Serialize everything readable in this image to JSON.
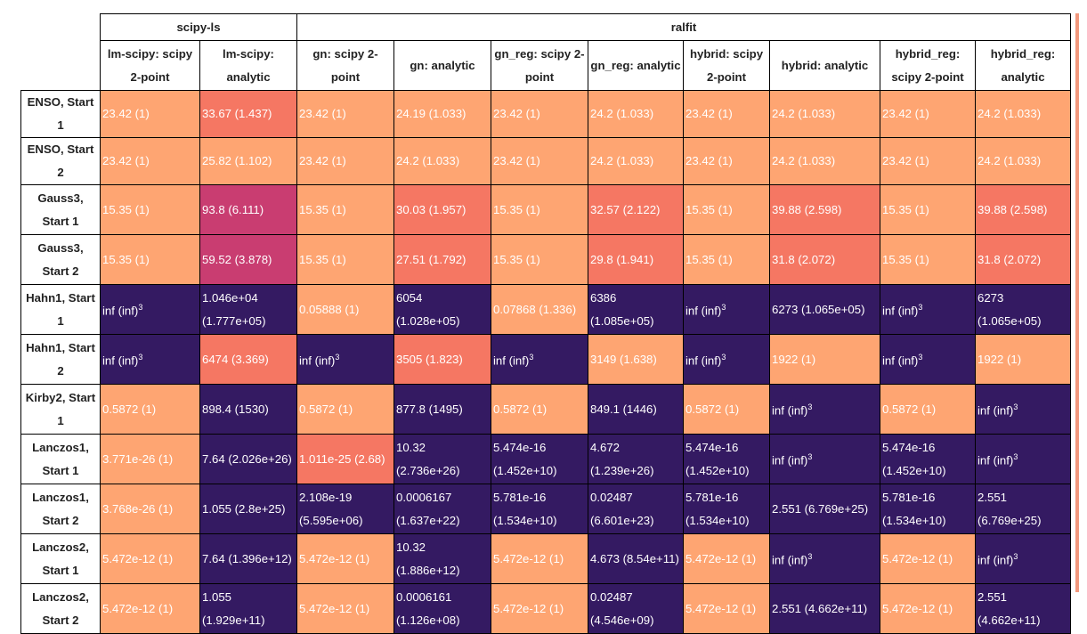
{
  "colors": {
    "low": "#fea572",
    "mid": "#f57763",
    "high": "#c93d71",
    "bad": "#341a62"
  },
  "groups": [
    {
      "label": "scipy-ls",
      "span": 2
    },
    {
      "label": "ralfit",
      "span": 8
    }
  ],
  "columns": [
    "lm-scipy: scipy 2-point",
    "lm-scipy: analytic",
    "gn: scipy 2-point",
    "gn: analytic",
    "gn_reg: scipy 2-point",
    "gn_reg: analytic",
    "hybrid: scipy 2-point",
    "hybrid: analytic",
    "hybrid_reg: scipy 2-point",
    "hybrid_reg: analytic"
  ],
  "rows": [
    {
      "name": "ENSO, Start 1",
      "cells": [
        {
          "text": "23.42 (1)",
          "c": "low"
        },
        {
          "text": "33.67 (1.437)",
          "c": "mid"
        },
        {
          "text": "23.42 (1)",
          "c": "low"
        },
        {
          "text": "24.19 (1.033)",
          "c": "low"
        },
        {
          "text": "23.42 (1)",
          "c": "low"
        },
        {
          "text": "24.2 (1.033)",
          "c": "low"
        },
        {
          "text": "23.42 (1)",
          "c": "low"
        },
        {
          "text": "24.2 (1.033)",
          "c": "low"
        },
        {
          "text": "23.42 (1)",
          "c": "low"
        },
        {
          "text": "24.2 (1.033)",
          "c": "low"
        }
      ]
    },
    {
      "name": "ENSO, Start 2",
      "cells": [
        {
          "text": "23.42 (1)",
          "c": "low"
        },
        {
          "text": "25.82 (1.102)",
          "c": "low"
        },
        {
          "text": "23.42 (1)",
          "c": "low"
        },
        {
          "text": "24.2 (1.033)",
          "c": "low"
        },
        {
          "text": "23.42 (1)",
          "c": "low"
        },
        {
          "text": "24.2 (1.033)",
          "c": "low"
        },
        {
          "text": "23.42 (1)",
          "c": "low"
        },
        {
          "text": "24.2 (1.033)",
          "c": "low"
        },
        {
          "text": "23.42 (1)",
          "c": "low"
        },
        {
          "text": "24.2 (1.033)",
          "c": "low"
        }
      ]
    },
    {
      "name": "Gauss3, Start 1",
      "cells": [
        {
          "text": "15.35 (1)",
          "c": "low"
        },
        {
          "text": "93.8 (6.111)",
          "c": "high"
        },
        {
          "text": "15.35 (1)",
          "c": "low"
        },
        {
          "text": "30.03 (1.957)",
          "c": "mid"
        },
        {
          "text": "15.35 (1)",
          "c": "low"
        },
        {
          "text": "32.57 (2.122)",
          "c": "mid"
        },
        {
          "text": "15.35 (1)",
          "c": "low"
        },
        {
          "text": "39.88 (2.598)",
          "c": "mid"
        },
        {
          "text": "15.35 (1)",
          "c": "low"
        },
        {
          "text": "39.88 (2.598)",
          "c": "mid"
        }
      ]
    },
    {
      "name": "Gauss3, Start 2",
      "cells": [
        {
          "text": "15.35 (1)",
          "c": "low"
        },
        {
          "text": "59.52 (3.878)",
          "c": "high"
        },
        {
          "text": "15.35 (1)",
          "c": "low"
        },
        {
          "text": "27.51 (1.792)",
          "c": "mid"
        },
        {
          "text": "15.35 (1)",
          "c": "low"
        },
        {
          "text": "29.8 (1.941)",
          "c": "mid"
        },
        {
          "text": "15.35 (1)",
          "c": "low"
        },
        {
          "text": "31.8 (2.072)",
          "c": "mid"
        },
        {
          "text": "15.35 (1)",
          "c": "low"
        },
        {
          "text": "31.8 (2.072)",
          "c": "mid"
        }
      ]
    },
    {
      "name": "Hahn1, Start 1",
      "cells": [
        {
          "text": "inf (inf)",
          "sup": "3",
          "c": "bad"
        },
        {
          "text": "1.046e+04 (1.777e+05)",
          "c": "bad"
        },
        {
          "text": "0.05888 (1)",
          "c": "low"
        },
        {
          "text": "6054 (1.028e+05)",
          "c": "bad"
        },
        {
          "text": "0.07868 (1.336)",
          "c": "low"
        },
        {
          "text": "6386 (1.085e+05)",
          "c": "bad"
        },
        {
          "text": "inf (inf)",
          "sup": "3",
          "c": "bad"
        },
        {
          "text": "6273 (1.065e+05)",
          "c": "bad"
        },
        {
          "text": "inf (inf)",
          "sup": "3",
          "c": "bad"
        },
        {
          "text": "6273 (1.065e+05)",
          "c": "bad"
        }
      ]
    },
    {
      "name": "Hahn1, Start 2",
      "cells": [
        {
          "text": "inf (inf)",
          "sup": "3",
          "c": "bad"
        },
        {
          "text": "6474 (3.369)",
          "c": "mid"
        },
        {
          "text": "inf (inf)",
          "sup": "3",
          "c": "bad"
        },
        {
          "text": "3505 (1.823)",
          "c": "mid"
        },
        {
          "text": "inf (inf)",
          "sup": "3",
          "c": "bad"
        },
        {
          "text": "3149 (1.638)",
          "c": "low"
        },
        {
          "text": "inf (inf)",
          "sup": "3",
          "c": "bad"
        },
        {
          "text": "1922 (1)",
          "c": "low"
        },
        {
          "text": "inf (inf)",
          "sup": "3",
          "c": "bad"
        },
        {
          "text": "1922 (1)",
          "c": "low"
        }
      ]
    },
    {
      "name": "Kirby2, Start 1",
      "cells": [
        {
          "text": "0.5872 (1)",
          "c": "low"
        },
        {
          "text": "898.4 (1530)",
          "c": "bad"
        },
        {
          "text": "0.5872 (1)",
          "c": "low"
        },
        {
          "text": "877.8 (1495)",
          "c": "bad"
        },
        {
          "text": "0.5872 (1)",
          "c": "low"
        },
        {
          "text": "849.1 (1446)",
          "c": "bad"
        },
        {
          "text": "0.5872 (1)",
          "c": "low"
        },
        {
          "text": "inf (inf)",
          "sup": "3",
          "c": "bad"
        },
        {
          "text": "0.5872 (1)",
          "c": "low"
        },
        {
          "text": "inf (inf)",
          "sup": "3",
          "c": "bad"
        }
      ]
    },
    {
      "name": "Lanczos1, Start 1",
      "cells": [
        {
          "text": "3.771e-26 (1)",
          "c": "low"
        },
        {
          "text": "7.64 (2.026e+26)",
          "c": "bad"
        },
        {
          "text": "1.011e-25 (2.68)",
          "c": "mid"
        },
        {
          "text": "10.32 (2.736e+26)",
          "c": "bad"
        },
        {
          "text": "5.474e-16 (1.452e+10)",
          "c": "bad"
        },
        {
          "text": "4.672 (1.239e+26)",
          "c": "bad"
        },
        {
          "text": "5.474e-16 (1.452e+10)",
          "c": "bad"
        },
        {
          "text": "inf (inf)",
          "sup": "3",
          "c": "bad"
        },
        {
          "text": "5.474e-16 (1.452e+10)",
          "c": "bad"
        },
        {
          "text": "inf (inf)",
          "sup": "3",
          "c": "bad"
        }
      ]
    },
    {
      "name": "Lanczos1, Start 2",
      "cells": [
        {
          "text": "3.768e-26 (1)",
          "c": "low"
        },
        {
          "text": "1.055 (2.8e+25)",
          "c": "bad"
        },
        {
          "text": "2.108e-19 (5.595e+06)",
          "c": "bad"
        },
        {
          "text": "0.0006167 (1.637e+22)",
          "c": "bad"
        },
        {
          "text": "5.781e-16 (1.534e+10)",
          "c": "bad"
        },
        {
          "text": "0.02487 (6.601e+23)",
          "c": "bad"
        },
        {
          "text": "5.781e-16 (1.534e+10)",
          "c": "bad"
        },
        {
          "text": "2.551 (6.769e+25)",
          "c": "bad"
        },
        {
          "text": "5.781e-16 (1.534e+10)",
          "c": "bad"
        },
        {
          "text": "2.551 (6.769e+25)",
          "c": "bad"
        }
      ]
    },
    {
      "name": "Lanczos2, Start 1",
      "cells": [
        {
          "text": "5.472e-12 (1)",
          "c": "low"
        },
        {
          "text": "7.64 (1.396e+12)",
          "c": "bad"
        },
        {
          "text": "5.472e-12 (1)",
          "c": "low"
        },
        {
          "text": "10.32 (1.886e+12)",
          "c": "bad"
        },
        {
          "text": "5.472e-12 (1)",
          "c": "low"
        },
        {
          "text": "4.673 (8.54e+11)",
          "c": "bad"
        },
        {
          "text": "5.472e-12 (1)",
          "c": "low"
        },
        {
          "text": "inf (inf)",
          "sup": "3",
          "c": "bad"
        },
        {
          "text": "5.472e-12 (1)",
          "c": "low"
        },
        {
          "text": "inf (inf)",
          "sup": "3",
          "c": "bad"
        }
      ]
    },
    {
      "name": "Lanczos2, Start 2",
      "cells": [
        {
          "text": "5.472e-12 (1)",
          "c": "low"
        },
        {
          "text": "1.055 (1.929e+11)",
          "c": "bad"
        },
        {
          "text": "5.472e-12 (1)",
          "c": "low"
        },
        {
          "text": "0.0006161 (1.126e+08)",
          "c": "bad"
        },
        {
          "text": "5.472e-12 (1)",
          "c": "low"
        },
        {
          "text": "0.02487 (4.546e+09)",
          "c": "bad"
        },
        {
          "text": "5.472e-12 (1)",
          "c": "low"
        },
        {
          "text": "2.551 (4.662e+11)",
          "c": "bad"
        },
        {
          "text": "5.472e-12 (1)",
          "c": "low"
        },
        {
          "text": "2.551 (4.662e+11)",
          "c": "bad"
        }
      ]
    }
  ]
}
